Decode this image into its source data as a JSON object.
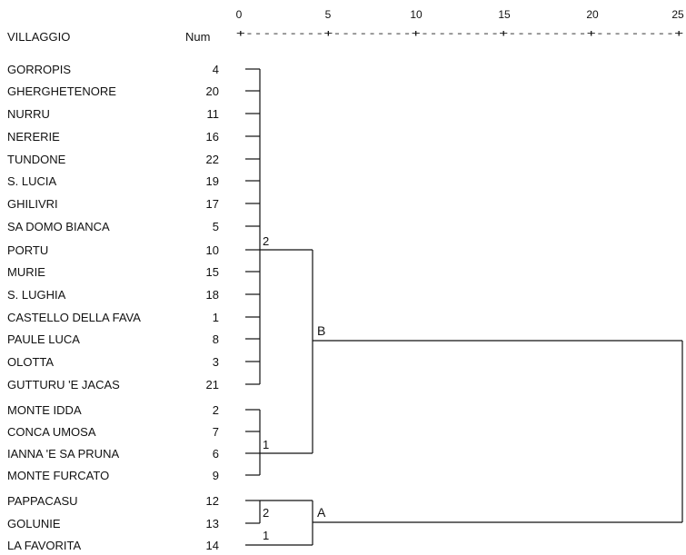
{
  "header": {
    "village_col": "VILLAGGIO",
    "num_col": "Num",
    "ruler": "+---------+---------+---------+---------+---------+"
  },
  "scale_ticks": [
    0,
    5,
    10,
    15,
    20,
    25
  ],
  "leaves": [
    {
      "name": "GORROPIS",
      "num": "4"
    },
    {
      "name": "GHERGHETENORE",
      "num": "20"
    },
    {
      "name": "NURRU",
      "num": "11"
    },
    {
      "name": "NERERIE",
      "num": "16"
    },
    {
      "name": "TUNDONE",
      "num": "22"
    },
    {
      "name": "S. LUCIA",
      "num": "19"
    },
    {
      "name": "GHILIVRI",
      "num": "17"
    },
    {
      "name": "SA DOMO BIANCA",
      "num": "5"
    },
    {
      "name": "PORTU",
      "num": "10"
    },
    {
      "name": "MURIE",
      "num": "15"
    },
    {
      "name": "S. LUGHIA",
      "num": "18"
    },
    {
      "name": "CASTELLO DELLA FAVA",
      "num": "1"
    },
    {
      "name": "PAULE LUCA",
      "num": "8"
    },
    {
      "name": "OLOTTA",
      "num": "3"
    },
    {
      "name": "GUTTURU 'E JACAS",
      "num": "21"
    },
    {
      "name": "MONTE IDDA",
      "num": "2"
    },
    {
      "name": "CONCA UMOSA",
      "num": "7"
    },
    {
      "name": "IANNA 'E SA PRUNA",
      "num": "6"
    },
    {
      "name": "MONTE FURCATO",
      "num": "9"
    },
    {
      "name": "PAPPACASU",
      "num": "12"
    },
    {
      "name": "GOLUNIE",
      "num": "13"
    },
    {
      "name": "LA FAVORITA",
      "num": "14"
    }
  ],
  "cluster_labels": {
    "c2_top": "2",
    "c1_mid": "1",
    "c2_small": "2",
    "c1_small": "1",
    "node_B": "B",
    "node_A": "A"
  }
}
